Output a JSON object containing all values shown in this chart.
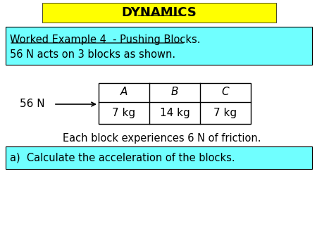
{
  "title": "DYNAMICS",
  "title_bg": "#FFFF00",
  "title_fontsize": 13,
  "worked_example_text1": "Worked Example 4  - Pushing Blocks.",
  "worked_example_text2": "56 N acts on 3 blocks as shown.",
  "worked_example_bg": "#70FFFF",
  "block_labels": [
    "A",
    "B",
    "C"
  ],
  "block_masses": [
    "7 kg",
    "14 kg",
    "7 kg"
  ],
  "force_label": "56 N",
  "friction_text": "Each block experiences 6 N of friction.",
  "question_text": "a)  Calculate the acceleration of the blocks.",
  "question_bg": "#70FFFF",
  "bg_color": "#FFFFFF",
  "font_color": "#000000",
  "body_fontsize": 10.5,
  "table_fontsize": 11
}
